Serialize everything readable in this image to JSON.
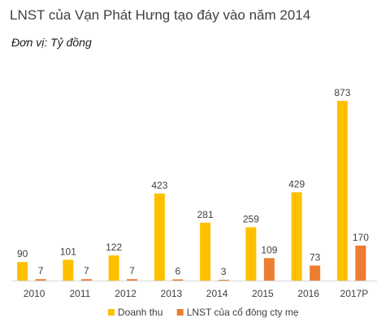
{
  "title": "LNST của Vạn Phát Hưng tạo đáy vào năm 2014",
  "unit_label": "Đơn vị: Tỷ đồng",
  "chart_data": {
    "type": "bar",
    "title": "LNST của Vạn Phát Hưng tạo đáy vào năm 2014",
    "subtitle": "Đơn vị: Tỷ đồng",
    "categories": [
      "2010",
      "2011",
      "2012",
      "2013",
      "2014",
      "2015",
      "2016",
      "2017P"
    ],
    "series": [
      {
        "name": "Doanh thu",
        "color": "#FFC000",
        "values": [
          90,
          101,
          122,
          423,
          281,
          259,
          429,
          873
        ]
      },
      {
        "name": "LNST của cổ đông cty mẹ",
        "color": "#ED7D31",
        "values": [
          7,
          7,
          7,
          6,
          3,
          109,
          73,
          170
        ]
      }
    ],
    "ylim": [
      0,
      900
    ],
    "grid": false,
    "legend": "bottom",
    "data_labels": true
  }
}
